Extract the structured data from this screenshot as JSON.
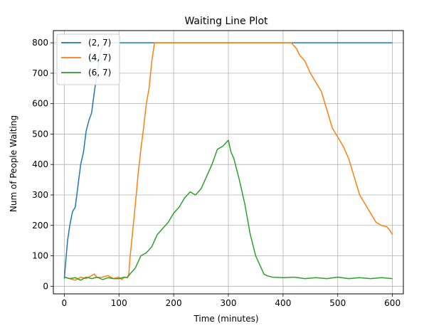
{
  "chart_data": {
    "type": "line",
    "title": "Waiting Line Plot",
    "xlabel": "Time (minutes)",
    "ylabel": "Num of People Waiting",
    "xlim": [
      -20,
      620
    ],
    "ylim": [
      -25,
      840
    ],
    "xticks": [
      0,
      100,
      200,
      300,
      400,
      500,
      600
    ],
    "yticks": [
      0,
      100,
      200,
      300,
      400,
      500,
      600,
      700,
      800
    ],
    "grid": true,
    "legend_position": "top-left",
    "series": [
      {
        "name": "(2, 7)",
        "color": "#1f77b4",
        "x": [
          0,
          3,
          6,
          10,
          15,
          20,
          25,
          30,
          35,
          40,
          45,
          50,
          55,
          60,
          65,
          70,
          75,
          80,
          85,
          90,
          600
        ],
        "y": [
          25,
          90,
          150,
          200,
          245,
          260,
          330,
          400,
          440,
          510,
          545,
          570,
          640,
          700,
          760,
          790,
          800,
          800,
          800,
          800,
          800
        ]
      },
      {
        "name": "(4, 7)",
        "color": "#ff7f0e",
        "x": [
          0,
          10,
          20,
          30,
          40,
          50,
          55,
          60,
          70,
          80,
          90,
          100,
          105,
          110,
          115,
          118,
          120,
          125,
          130,
          135,
          140,
          145,
          150,
          155,
          160,
          165,
          170,
          200,
          250,
          300,
          350,
          380,
          400,
          410,
          415,
          420,
          425,
          430,
          440,
          450,
          460,
          470,
          480,
          490,
          500,
          510,
          520,
          530,
          540,
          550,
          560,
          570,
          580,
          590,
          595,
          600
        ],
        "y": [
          30,
          25,
          20,
          30,
          25,
          35,
          40,
          28,
          30,
          35,
          25,
          30,
          22,
          30,
          28,
          40,
          90,
          180,
          270,
          370,
          450,
          520,
          600,
          650,
          740,
          800,
          800,
          800,
          800,
          800,
          800,
          800,
          800,
          800,
          800,
          790,
          780,
          760,
          740,
          700,
          670,
          640,
          580,
          520,
          490,
          460,
          420,
          360,
          300,
          270,
          240,
          210,
          200,
          195,
          185,
          170
        ]
      },
      {
        "name": "(6, 7)",
        "color": "#2ca02c",
        "x": [
          0,
          10,
          20,
          30,
          40,
          50,
          60,
          70,
          80,
          90,
          100,
          110,
          115,
          120,
          130,
          140,
          150,
          160,
          170,
          180,
          190,
          200,
          210,
          220,
          230,
          240,
          250,
          260,
          270,
          280,
          290,
          300,
          305,
          310,
          320,
          330,
          340,
          350,
          360,
          365,
          370,
          380,
          400,
          420,
          440,
          460,
          480,
          500,
          520,
          540,
          560,
          580,
          600
        ],
        "y": [
          30,
          25,
          28,
          20,
          30,
          25,
          30,
          22,
          28,
          25,
          25,
          30,
          28,
          40,
          60,
          100,
          110,
          130,
          170,
          190,
          210,
          240,
          260,
          290,
          310,
          300,
          320,
          360,
          400,
          450,
          460,
          480,
          440,
          420,
          350,
          270,
          170,
          100,
          60,
          40,
          35,
          30,
          28,
          30,
          25,
          28,
          25,
          30,
          25,
          28,
          25,
          28,
          25
        ]
      }
    ]
  }
}
